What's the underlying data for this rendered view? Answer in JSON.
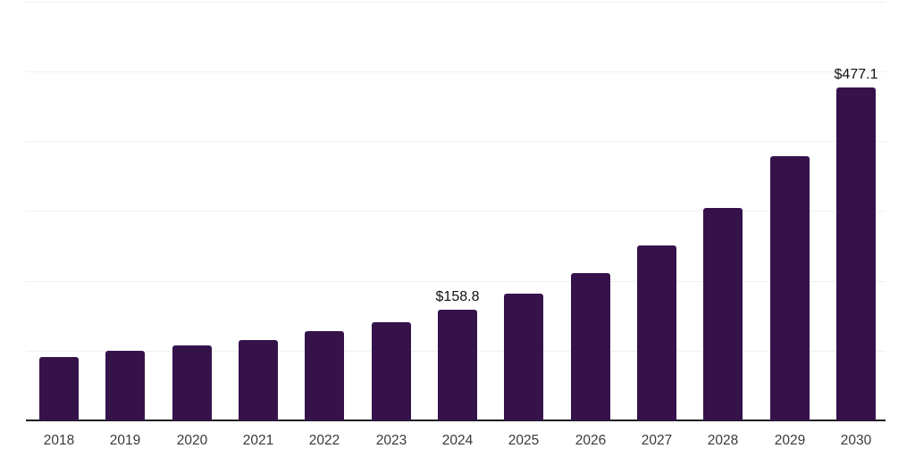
{
  "chart_data": {
    "type": "bar",
    "title": "",
    "xlabel": "",
    "ylabel": "",
    "categories": [
      "2018",
      "2019",
      "2020",
      "2021",
      "2022",
      "2023",
      "2024",
      "2025",
      "2026",
      "2027",
      "2028",
      "2029",
      "2030"
    ],
    "values": [
      90.6,
      99.5,
      106.9,
      115.4,
      127.3,
      141.0,
      158.8,
      181.8,
      211.5,
      250.9,
      304.7,
      378.2,
      477.1
    ],
    "data_labels": {
      "2024": "$158.8",
      "2030": "$477.1"
    },
    "ylim": [
      0,
      600
    ],
    "gridline_values": [
      100,
      200,
      300,
      400,
      500,
      600
    ],
    "grid": "horizontal-only",
    "legend": "none",
    "y_axis_tick_labels_visible": false,
    "colors": {
      "bar": "#36124B",
      "axis_line": "#1f1f24",
      "gridline": "#f0f0f2",
      "tick_label": "#3a3a3a",
      "data_label": "#111111",
      "background": "#ffffff"
    }
  }
}
